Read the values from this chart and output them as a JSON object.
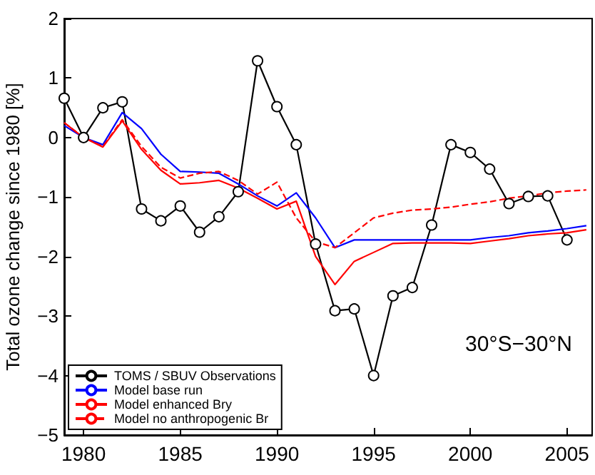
{
  "chart_data": {
    "type": "line",
    "ylabel": "Total ozone change since 1980 [%]",
    "x": [
      1979,
      1980,
      1981,
      1982,
      1983,
      1984,
      1985,
      1986,
      1987,
      1988,
      1989,
      1990,
      1991,
      1992,
      1993,
      1994,
      1995,
      1996,
      1997,
      1998,
      1999,
      2000,
      2001,
      2002,
      2003,
      2004,
      2005,
      2006
    ],
    "series": [
      {
        "name": "TOMS / SBUV Observations",
        "color": "#000000",
        "marker": "circle",
        "line_style": "solid",
        "values": [
          0.66,
          0,
          0.5,
          0.6,
          -1.2,
          -1.4,
          -1.15,
          -1.59,
          -1.33,
          -0.91,
          1.29,
          0.52,
          -0.12,
          -1.79,
          -2.91,
          -2.88,
          -4.0,
          -2.66,
          -2.52,
          -1.47,
          -0.12,
          -0.25,
          -0.53,
          -1.11,
          -0.99,
          -0.98,
          -1.72,
          null
        ]
      },
      {
        "name": "Model base run",
        "color": "#0000ff",
        "marker": "none",
        "line_style": "solid",
        "values": [
          0.2,
          0,
          -0.12,
          0.42,
          0.15,
          -0.28,
          -0.57,
          -0.58,
          -0.6,
          -0.78,
          -0.98,
          -1.15,
          -0.93,
          -1.35,
          -1.85,
          -1.72,
          -1.72,
          -1.72,
          -1.72,
          -1.72,
          -1.72,
          -1.72,
          -1.68,
          -1.65,
          -1.6,
          -1.57,
          -1.53,
          -1.48
        ]
      },
      {
        "name": "Model enhanced Bry",
        "color": "#ff0000",
        "marker": "none",
        "line_style": "solid",
        "values": [
          0.25,
          0,
          -0.16,
          0.28,
          -0.2,
          -0.55,
          -0.78,
          -0.76,
          -0.72,
          -0.85,
          -1.02,
          -1.2,
          -1.07,
          -2.0,
          -2.47,
          -2.08,
          -1.93,
          -1.78,
          -1.77,
          -1.77,
          -1.77,
          -1.78,
          -1.74,
          -1.7,
          -1.65,
          -1.62,
          -1.6,
          -1.55
        ]
      },
      {
        "name": "Model no anthropogenic Br",
        "color": "#ff0000",
        "marker": "none",
        "line_style": "dashed",
        "values": [
          0.25,
          0,
          -0.15,
          0.3,
          -0.15,
          -0.5,
          -0.68,
          -0.6,
          -0.57,
          -0.72,
          -0.95,
          -0.75,
          -1.35,
          -1.75,
          -1.85,
          -1.6,
          -1.35,
          -1.27,
          -1.22,
          -1.2,
          -1.17,
          -1.12,
          -1.08,
          -1.02,
          -0.98,
          -0.93,
          -0.9,
          -0.88
        ]
      }
    ],
    "xlim": [
      1979,
      2006.3
    ],
    "xticks": [
      1980,
      1985,
      1990,
      1995,
      2000,
      2005
    ],
    "ylim": [
      -5,
      2
    ],
    "yticks": [
      -5,
      -4,
      -3,
      -2,
      -1,
      0,
      1,
      2
    ],
    "grid": false,
    "legend": "bottom left",
    "annotations": [
      "30°S−30°N"
    ]
  }
}
